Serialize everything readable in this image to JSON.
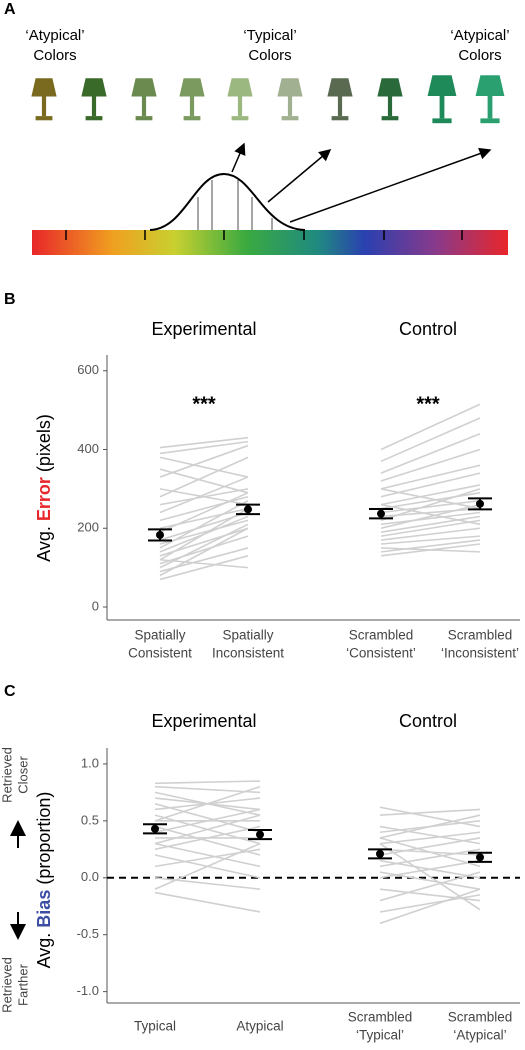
{
  "diagram": {
    "panel": "A",
    "labels": [
      [
        "‘Atypical’",
        "Colors"
      ],
      [
        "‘Typical’",
        "Colors"
      ],
      [
        "‘Atypical’",
        "Colors"
      ]
    ]
  },
  "chart_data": [
    {
      "type": "line",
      "panel": "B",
      "groups": [
        "Experimental",
        "Control"
      ],
      "significance": [
        "***",
        "***"
      ],
      "categories": [
        [
          "Spatially",
          "Consistent"
        ],
        [
          "Spatially",
          "Inconsistent"
        ],
        [
          "Scrambled",
          "‘Consistent’"
        ],
        [
          "Scrambled",
          "‘Inconsistent’"
        ]
      ],
      "ylabel": [
        "Avg.",
        "Error",
        "(pixels)"
      ],
      "ylabel_colors": [
        "#000000",
        "#e8262a",
        "#000000"
      ],
      "ylim": [
        -33,
        640
      ],
      "yticks": [
        0,
        200,
        400,
        600
      ],
      "line_color": "#d0d0d0",
      "means": [
        183,
        248,
        237,
        262
      ],
      "errors": [
        14,
        12,
        12,
        14
      ],
      "subjects": [
        [
          [
            405,
            430
          ],
          [
            390,
            420
          ],
          [
            380,
            330
          ],
          [
            350,
            290
          ],
          [
            330,
            410
          ],
          [
            300,
            260
          ],
          [
            280,
            380
          ],
          [
            260,
            300
          ],
          [
            240,
            330
          ],
          [
            220,
            280
          ],
          [
            200,
            250
          ],
          [
            190,
            290
          ],
          [
            170,
            240
          ],
          [
            160,
            220
          ],
          [
            150,
            270
          ],
          [
            140,
            230
          ],
          [
            130,
            200
          ],
          [
            120,
            250
          ],
          [
            110,
            180
          ],
          [
            100,
            210
          ],
          [
            90,
            150
          ],
          [
            80,
            200
          ],
          [
            70,
            130
          ],
          [
            120,
            100
          ]
        ],
        [
          [
            400,
            515
          ],
          [
            370,
            480
          ],
          [
            340,
            440
          ],
          [
            320,
            400
          ],
          [
            300,
            360
          ],
          [
            280,
            340
          ],
          [
            260,
            310
          ],
          [
            250,
            290
          ],
          [
            240,
            270
          ],
          [
            230,
            250
          ],
          [
            220,
            300
          ],
          [
            210,
            240
          ],
          [
            200,
            260
          ],
          [
            190,
            230
          ],
          [
            180,
            220
          ],
          [
            170,
            200
          ],
          [
            160,
            180
          ],
          [
            150,
            140
          ],
          [
            140,
            170
          ],
          [
            130,
            160
          ],
          [
            260,
            210
          ],
          [
            300,
            250
          ]
        ]
      ]
    },
    {
      "type": "line",
      "panel": "C",
      "groups": [
        "Experimental",
        "Control"
      ],
      "categories": [
        [
          "Typical"
        ],
        [
          "Atypical"
        ],
        [
          "Scrambled",
          "‘Typical’"
        ],
        [
          "Scrambled",
          "‘Atypical’"
        ]
      ],
      "ylabel": [
        "Avg.",
        "Bias",
        "(proportion)"
      ],
      "ylabel_colors": [
        "#000000",
        "#3b4ea3",
        "#000000"
      ],
      "direction_labels": [
        [
          "Retrieved",
          "Closer"
        ],
        [
          "Retrieved",
          "Farther"
        ]
      ],
      "ylim": [
        -1.1,
        1.14
      ],
      "yticks": [
        {
          "value": -1,
          "label": "-1.0"
        },
        -0.5,
        {
          "value": 0,
          "label": "0.0"
        },
        0.5,
        {
          "value": 1,
          "label": "1.0"
        }
      ],
      "reference_line": 0,
      "line_color": "#d0d0d0",
      "means": [
        0.43,
        0.38,
        0.21,
        0.18
      ],
      "errors": [
        0.04,
        0.04,
        0.04,
        0.04
      ],
      "subjects": [
        [
          [
            0.83,
            0.85
          ],
          [
            0.8,
            0.75
          ],
          [
            0.75,
            0.55
          ],
          [
            0.7,
            0.6
          ],
          [
            0.65,
            0.4
          ],
          [
            0.6,
            0.7
          ],
          [
            0.55,
            0.3
          ],
          [
            0.5,
            0.5
          ],
          [
            0.45,
            0.2
          ],
          [
            0.4,
            0.6
          ],
          [
            0.35,
            0.35
          ],
          [
            0.3,
            0.1
          ],
          [
            0.25,
            0.45
          ],
          [
            0.2,
            0.0
          ],
          [
            0.1,
            0.25
          ],
          [
            0.0,
            -0.1
          ],
          [
            -0.1,
            0.3
          ],
          [
            -0.13,
            -0.3
          ],
          [
            0.5,
            0.8
          ],
          [
            0.3,
            0.55
          ]
        ],
        [
          [
            0.62,
            0.45
          ],
          [
            0.55,
            0.6
          ],
          [
            0.45,
            0.3
          ],
          [
            0.4,
            0.5
          ],
          [
            0.35,
            0.1
          ],
          [
            0.3,
            0.4
          ],
          [
            0.25,
            0.2
          ],
          [
            0.2,
            0.35
          ],
          [
            0.15,
            0.0
          ],
          [
            0.1,
            0.25
          ],
          [
            0.05,
            -0.1
          ],
          [
            0.0,
            0.15
          ],
          [
            -0.1,
            -0.2
          ],
          [
            -0.2,
            0.05
          ],
          [
            -0.3,
            -0.15
          ],
          [
            -0.4,
            -0.1
          ],
          [
            0.3,
            -0.28
          ],
          [
            0.35,
            0.55
          ]
        ]
      ]
    }
  ]
}
